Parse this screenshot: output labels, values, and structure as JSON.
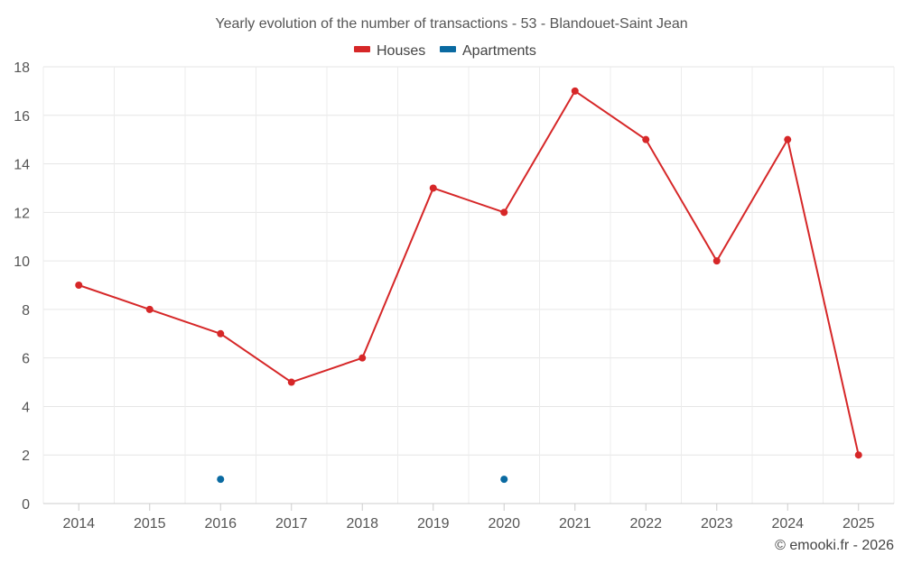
{
  "chart_data": {
    "type": "line",
    "title": "Yearly evolution of the number of transactions - 53 - Blandouet-Saint Jean",
    "categories": [
      "2014",
      "2015",
      "2016",
      "2017",
      "2018",
      "2019",
      "2020",
      "2021",
      "2022",
      "2023",
      "2024",
      "2025"
    ],
    "series": [
      {
        "name": "Houses",
        "color": "#d62728",
        "values": [
          9,
          8,
          7,
          5,
          6,
          13,
          12,
          17,
          15,
          10,
          15,
          2
        ]
      },
      {
        "name": "Apartments",
        "color": "#0a6aa1",
        "values": [
          null,
          null,
          1,
          null,
          null,
          null,
          1,
          null,
          null,
          null,
          null,
          null
        ]
      }
    ],
    "ylim": [
      0,
      18
    ],
    "yticks": [
      "0",
      "2",
      "4",
      "6",
      "8",
      "10",
      "12",
      "14",
      "16",
      "18"
    ],
    "grid": true,
    "legend_position": "top-center",
    "credit": "© emooki.fr - 2026"
  }
}
